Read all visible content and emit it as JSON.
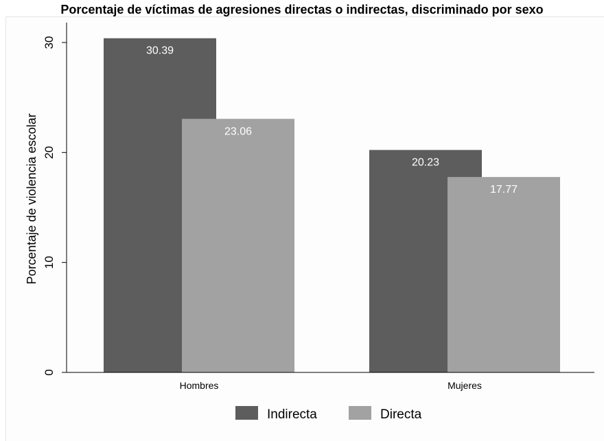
{
  "title": "Porcentaje de víctimas de agresiones directas o indirectas, discriminado por sexo",
  "chart_data": {
    "type": "bar",
    "ylabel": "Porcentaje de violencia escolar",
    "xlabel": "",
    "ylim": [
      0,
      32
    ],
    "yticks": [
      0,
      10,
      20,
      30
    ],
    "categories": [
      "Hombres",
      "Mujeres"
    ],
    "series": [
      {
        "name": "Indirecta",
        "values": [
          30.39,
          20.23
        ],
        "labels": [
          "30.39",
          "20.23"
        ],
        "color": "#5d5d5d"
      },
      {
        "name": "Directa",
        "values": [
          23.06,
          17.77
        ],
        "labels": [
          "23.06",
          "17.77"
        ],
        "color": "#a2a2a2"
      }
    ],
    "grid": false,
    "legend": "bottom"
  }
}
